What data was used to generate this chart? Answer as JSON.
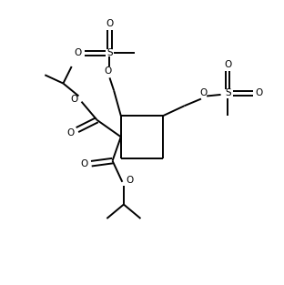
{
  "bg_color": "#ffffff",
  "line_color": "#000000",
  "lw": 1.4,
  "figsize": [
    3.12,
    3.13
  ],
  "dpi": 100,
  "xlim": [
    0,
    10
  ],
  "ylim": [
    0,
    10
  ]
}
